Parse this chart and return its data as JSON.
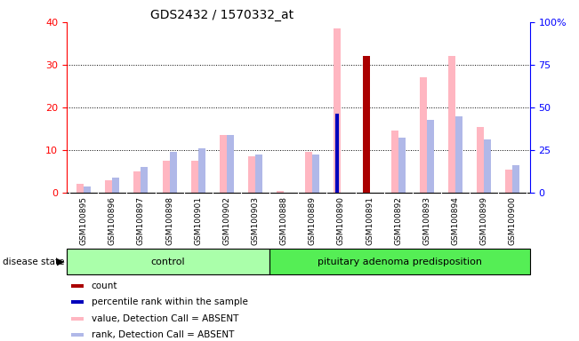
{
  "title": "GDS2432 / 1570332_at",
  "samples": [
    "GSM100895",
    "GSM100896",
    "GSM100897",
    "GSM100898",
    "GSM100901",
    "GSM100902",
    "GSM100903",
    "GSM100888",
    "GSM100889",
    "GSM100890",
    "GSM100891",
    "GSM100892",
    "GSM100893",
    "GSM100894",
    "GSM100899",
    "GSM100900"
  ],
  "n_control": 7,
  "n_pituitary": 9,
  "value_absent": [
    2.0,
    3.0,
    5.0,
    7.5,
    7.5,
    13.5,
    8.5,
    0.5,
    9.5,
    38.5,
    0.0,
    14.5,
    27.0,
    32.0,
    15.5,
    5.5
  ],
  "rank_absent": [
    1.5,
    3.5,
    6.0,
    9.5,
    10.5,
    13.5,
    9.0,
    0.0,
    9.0,
    0.0,
    0.0,
    13.0,
    17.0,
    18.0,
    12.5,
    6.5
  ],
  "count": [
    0.0,
    0.0,
    0.0,
    0.0,
    0.0,
    0.0,
    0.0,
    0.0,
    0.0,
    0.0,
    32.0,
    0.0,
    0.0,
    0.0,
    0.0,
    0.0
  ],
  "percentile": [
    0.0,
    0.0,
    0.0,
    0.0,
    0.0,
    0.0,
    0.0,
    0.0,
    0.0,
    18.5,
    0.0,
    0.0,
    0.0,
    0.0,
    0.0,
    0.0
  ],
  "ylim_left": [
    0,
    40
  ],
  "ylim_right": [
    0,
    100
  ],
  "yticks_left": [
    0,
    10,
    20,
    30,
    40
  ],
  "yticks_right": [
    0,
    25,
    50,
    75,
    100
  ],
  "bar_width": 0.25,
  "color_value_absent": "#FFB6C1",
  "color_rank_absent": "#B0B8E8",
  "color_count": "#AA0000",
  "color_percentile": "#0000BB",
  "group_color_control": "#AAFFAA",
  "group_color_pituitary": "#55EE55",
  "legend_items": [
    {
      "color": "#AA0000",
      "label": "count"
    },
    {
      "color": "#0000BB",
      "label": "percentile rank within the sample"
    },
    {
      "color": "#FFB6C1",
      "label": "value, Detection Call = ABSENT"
    },
    {
      "color": "#B0B8E8",
      "label": "rank, Detection Call = ABSENT"
    }
  ]
}
